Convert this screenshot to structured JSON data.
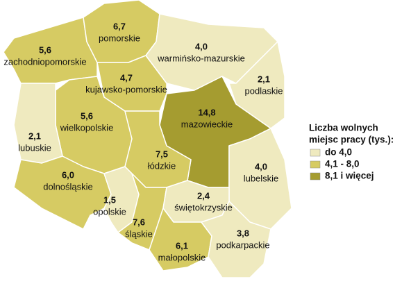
{
  "chart_data": {
    "type": "choropleth",
    "categories": [
      "zachodniopomorskie",
      "pomorskie",
      "warmińsko-mazurskie",
      "podlaskie",
      "kujawsko-pomorskie",
      "wielkopolskie",
      "lubuskie",
      "mazowieckie",
      "łódzkie",
      "lubelskie",
      "dolnośląskie",
      "opolskie",
      "śląskie",
      "świętokrzyskie",
      "małopolskie",
      "podkarpackie"
    ],
    "values": [
      5.6,
      6.7,
      4.0,
      2.1,
      4.7,
      5.6,
      2.1,
      14.8,
      7.5,
      4.0,
      6.0,
      1.5,
      7.6,
      2.4,
      6.1,
      3.8
    ],
    "value_labels": [
      "5,6",
      "6,7",
      "4,0",
      "2,1",
      "4,7",
      "5,6",
      "2,1",
      "14,8",
      "7,5",
      "4,0",
      "6,0",
      "1,5",
      "7,6",
      "2,4",
      "6,1",
      "3,8"
    ],
    "legend_title": [
      "Liczba wolnych",
      "miejsc pracy (tys.):"
    ],
    "legend": [
      {
        "label": "do 4,0",
        "max": 4.0,
        "color": "#efeabf"
      },
      {
        "label": "4,1 - 8,0",
        "min": 4.1,
        "max": 8.0,
        "color": "#d6cb63"
      },
      {
        "label": "8,1 i więcej",
        "min": 8.1,
        "color": "#a59c30"
      }
    ]
  }
}
